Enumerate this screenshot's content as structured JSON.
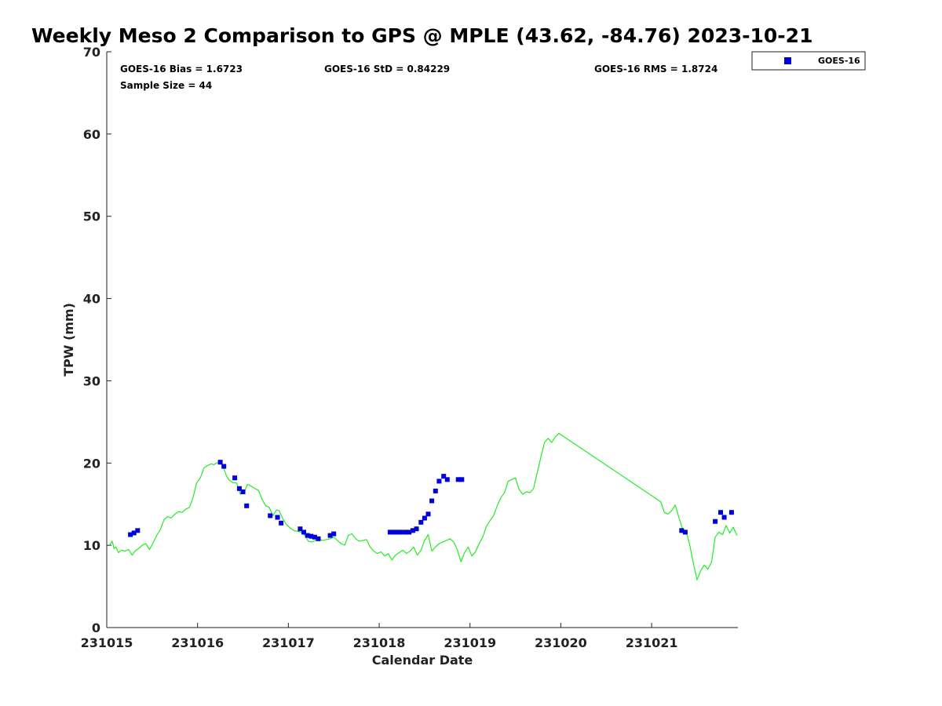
{
  "chart_data": {
    "type": "scatter+line",
    "title": "Weekly Meso 2 Comparison to GPS @ MPLE (43.62, -84.76) 2023-10-21",
    "xlabel": "Calendar Date",
    "ylabel": "TPW (mm)",
    "xlim": [
      0,
      6.95
    ],
    "ylim": [
      0,
      70
    ],
    "x_ticks": [
      0,
      1,
      2,
      3,
      4,
      5,
      6
    ],
    "x_tick_labels": [
      "231015",
      "231016",
      "231017",
      "231018",
      "231019",
      "231020",
      "231021"
    ],
    "y_ticks": [
      0,
      10,
      20,
      30,
      40,
      50,
      60,
      70
    ],
    "y_tick_labels": [
      "0",
      "10",
      "20",
      "30",
      "40",
      "50",
      "60",
      "70"
    ],
    "stats": {
      "bias": "GOES-16 Bias = 1.6723",
      "std": "GOES-16 StD = 0.84229",
      "rms": "GOES-16 RMS = 1.8724",
      "sample": "Sample Size = 44"
    },
    "legend": {
      "label": "GOES-16",
      "location": "outside-top-right"
    },
    "colors": {
      "goes": "#0000dd",
      "gps": "#22ee22"
    },
    "series": [
      {
        "name": "GOES-16",
        "kind": "scatter",
        "x": [
          0.26,
          0.3,
          0.34,
          1.25,
          1.29,
          1.41,
          1.46,
          1.5,
          1.54,
          1.8,
          1.88,
          1.92,
          2.13,
          2.17,
          2.21,
          2.25,
          2.29,
          2.33,
          2.46,
          2.5,
          3.12,
          3.16,
          3.2,
          3.24,
          3.29,
          3.33,
          3.37,
          3.41,
          3.46,
          3.5,
          3.54,
          3.58,
          3.62,
          3.66,
          3.71,
          3.75,
          3.87,
          3.91,
          6.33,
          6.37,
          6.7,
          6.76,
          6.8,
          6.88
        ],
        "y": [
          11.3,
          11.5,
          11.8,
          20.1,
          19.6,
          18.2,
          16.9,
          16.5,
          14.8,
          13.6,
          13.4,
          12.7,
          12.0,
          11.6,
          11.2,
          11.1,
          11.0,
          10.8,
          11.2,
          11.4,
          11.6,
          11.6,
          11.6,
          11.6,
          11.6,
          11.6,
          11.8,
          12.0,
          12.8,
          13.3,
          13.8,
          15.4,
          16.6,
          17.8,
          18.4,
          18.0,
          18.0,
          18.0,
          11.8,
          11.6,
          12.9,
          14.0,
          13.4,
          14.0
        ]
      },
      {
        "name": "GPS",
        "kind": "line",
        "x": [
          0.03,
          0.06,
          0.08,
          0.1,
          0.13,
          0.16,
          0.2,
          0.24,
          0.28,
          0.31,
          0.35,
          0.39,
          0.43,
          0.47,
          0.51,
          0.55,
          0.59,
          0.63,
          0.67,
          0.71,
          0.75,
          0.79,
          0.83,
          0.87,
          0.91,
          0.95,
          0.99,
          1.03,
          1.07,
          1.11,
          1.15,
          1.18,
          1.21,
          1.25,
          1.29,
          1.32,
          1.35,
          1.39,
          1.43,
          1.47,
          1.51,
          1.55,
          1.59,
          1.63,
          1.67,
          1.71,
          1.75,
          1.79,
          1.83,
          1.87,
          1.9,
          1.94,
          1.98,
          2.02,
          2.06,
          2.1,
          2.14,
          2.18,
          2.22,
          2.26,
          2.3,
          2.34,
          2.38,
          2.42,
          2.46,
          2.5,
          2.54,
          2.58,
          2.62,
          2.66,
          2.7,
          2.74,
          2.78,
          2.82,
          2.86,
          2.9,
          2.94,
          2.98,
          3.02,
          3.06,
          3.1,
          3.14,
          3.18,
          3.22,
          3.26,
          3.3,
          3.34,
          3.38,
          3.42,
          3.46,
          3.5,
          3.54,
          3.58,
          3.62,
          3.66,
          3.7,
          3.74,
          3.78,
          3.82,
          3.86,
          3.9,
          3.94,
          3.98,
          4.02,
          4.06,
          4.1,
          4.14,
          4.18,
          4.22,
          4.26,
          4.3,
          4.34,
          4.38,
          4.42,
          4.46,
          4.5,
          4.54,
          4.58,
          4.62,
          4.66,
          4.7,
          4.74,
          4.78,
          4.82,
          4.86,
          4.9,
          4.94,
          4.98,
          6.1,
          6.14,
          6.18,
          6.22,
          6.26,
          6.3,
          6.34,
          6.38,
          6.42,
          6.46,
          6.5,
          6.54,
          6.58,
          6.62,
          6.66,
          6.7,
          6.74,
          6.78,
          6.82,
          6.86,
          6.9,
          6.94
        ],
        "y": [
          10.0,
          10.5,
          9.6,
          9.8,
          9.1,
          9.4,
          9.3,
          9.5,
          8.8,
          9.3,
          9.6,
          10.0,
          10.2,
          9.5,
          10.3,
          11.2,
          11.9,
          13.1,
          13.5,
          13.3,
          13.8,
          14.1,
          14.0,
          14.4,
          14.6,
          15.8,
          17.6,
          18.2,
          19.4,
          19.7,
          19.9,
          19.8,
          20.0,
          20.1,
          19.3,
          18.4,
          17.9,
          17.6,
          17.6,
          16.2,
          16.4,
          17.4,
          17.2,
          16.9,
          16.7,
          15.6,
          14.8,
          14.6,
          13.6,
          14.3,
          14.2,
          13.2,
          12.5,
          12.1,
          11.8,
          11.7,
          11.6,
          11.2,
          10.5,
          10.4,
          10.6,
          10.7,
          10.6,
          10.7,
          10.8,
          11.0,
          10.6,
          10.2,
          10.0,
          11.2,
          11.4,
          10.8,
          10.5,
          10.6,
          10.7,
          9.8,
          9.3,
          9.0,
          9.2,
          8.7,
          9.0,
          8.2,
          8.8,
          9.1,
          9.4,
          9.0,
          9.3,
          9.8,
          8.8,
          9.4,
          10.6,
          11.3,
          9.3,
          9.8,
          10.2,
          10.4,
          10.6,
          10.8,
          10.4,
          9.5,
          8.0,
          9.1,
          9.8,
          8.7,
          9.2,
          10.2,
          11.0,
          12.3,
          13.0,
          13.6,
          14.8,
          15.8,
          16.4,
          17.8,
          18.0,
          18.2,
          16.8,
          16.2,
          16.5,
          16.4,
          16.9,
          18.8,
          20.7,
          22.5,
          23.0,
          22.5,
          23.2,
          23.6,
          15.3,
          14.0,
          13.8,
          14.2,
          14.9,
          13.4,
          12.0,
          11.7,
          10.0,
          7.8,
          5.8,
          6.9,
          7.6,
          7.1,
          8.0,
          11.0,
          11.6,
          11.3,
          12.4,
          11.5,
          12.2,
          11.2
        ]
      }
    ]
  }
}
